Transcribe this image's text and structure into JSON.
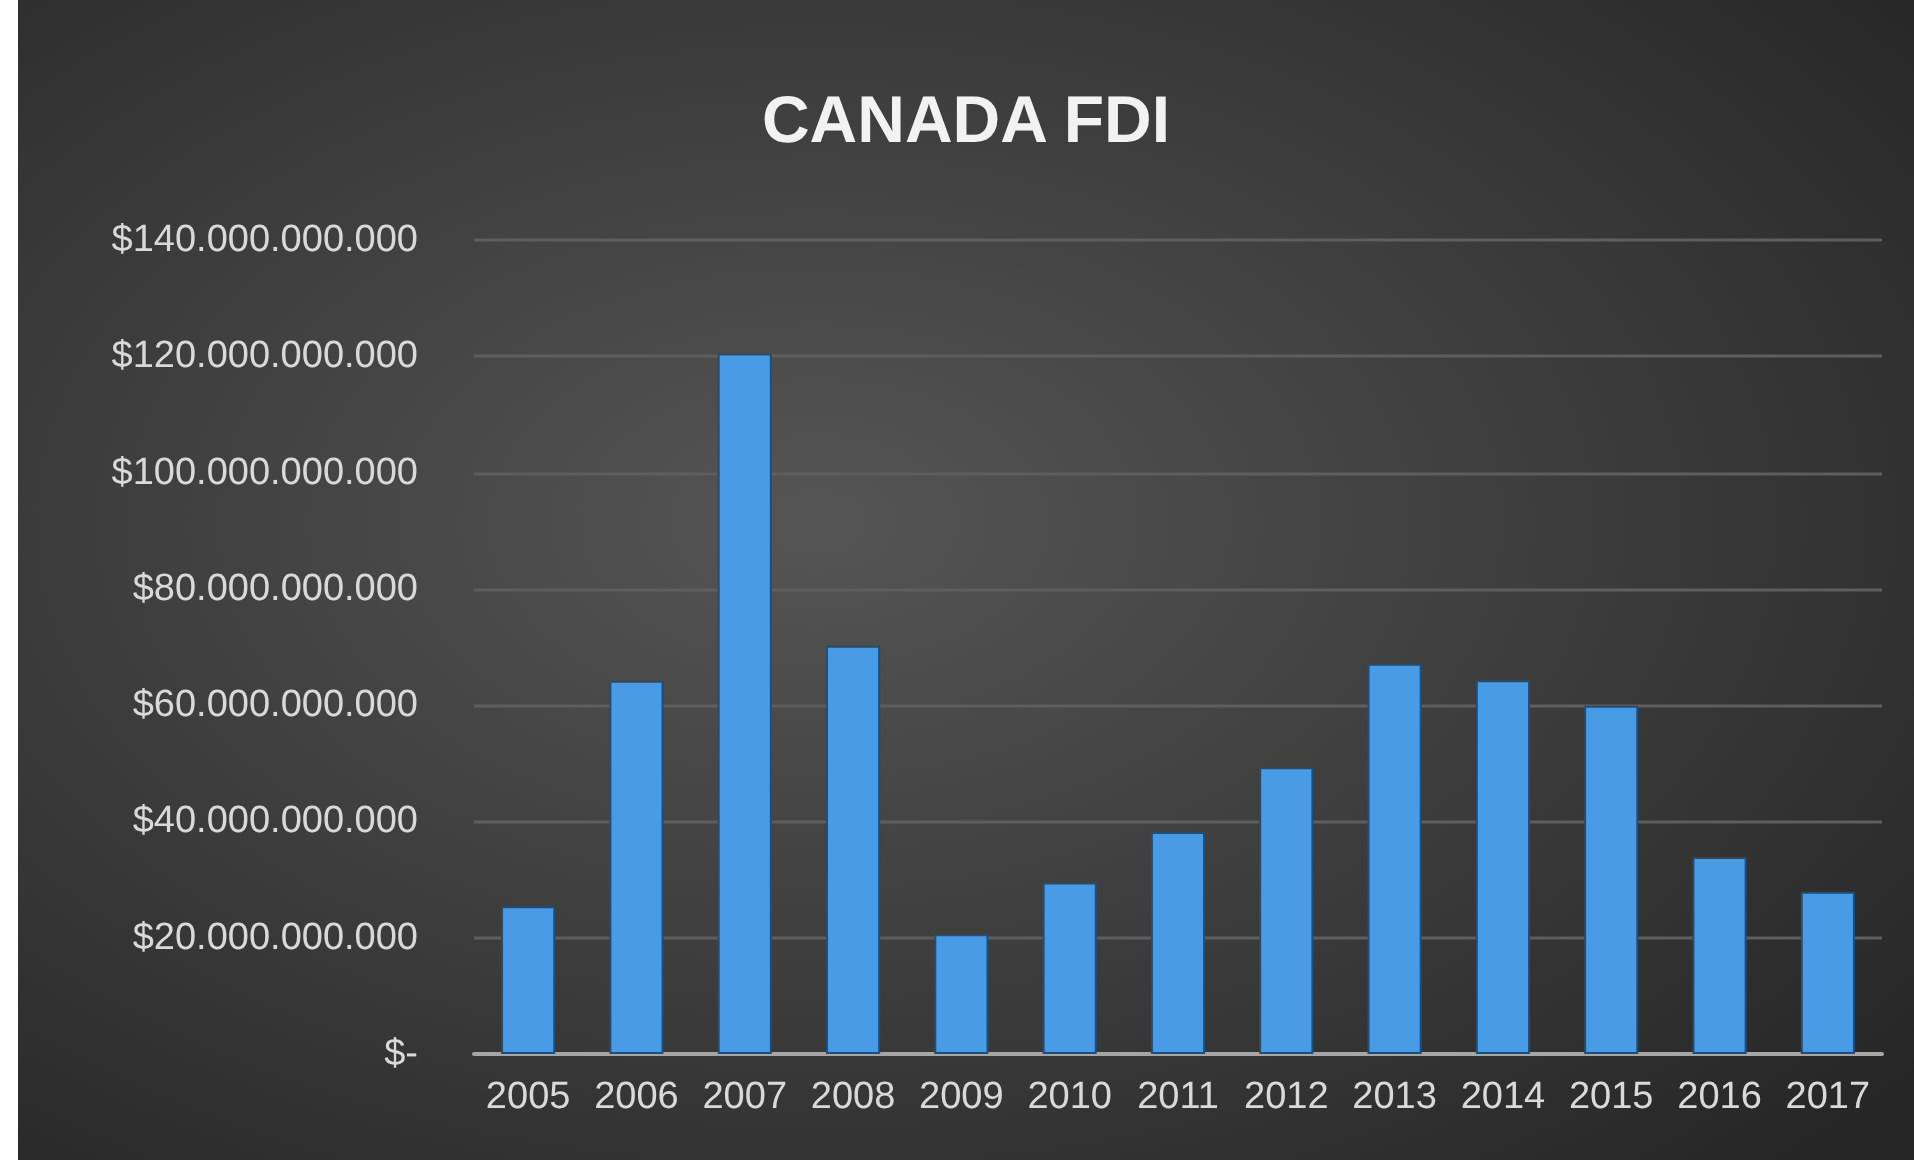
{
  "chart_data": {
    "type": "bar",
    "title": "CANADA FDI",
    "categories": [
      "2005",
      "2006",
      "2007",
      "2008",
      "2009",
      "2010",
      "2011",
      "2012",
      "2013",
      "2014",
      "2015",
      "2016",
      "2017"
    ],
    "values": [
      25400000000,
      64200000000,
      120500000000,
      70200000000,
      20600000000,
      29500000000,
      38200000000,
      49300000000,
      67100000000,
      64300000000,
      59900000000,
      33900000000,
      27900000000
    ],
    "color": "#4a9be6",
    "ylim": [
      0,
      140000000000
    ],
    "yticks": [
      {
        "value": 0,
        "label": "$-"
      },
      {
        "value": 20000000000,
        "label": "$20.000.000.000"
      },
      {
        "value": 40000000000,
        "label": "$40.000.000.000"
      },
      {
        "value": 60000000000,
        "label": "$60.000.000.000"
      },
      {
        "value": 80000000000,
        "label": "$80.000.000.000"
      },
      {
        "value": 100000000000,
        "label": "$100.000.000.000"
      },
      {
        "value": 120000000000,
        "label": "$120.000.000.000"
      },
      {
        "value": 140000000000,
        "label": "$140.000.000.000"
      }
    ],
    "grid": "y"
  }
}
